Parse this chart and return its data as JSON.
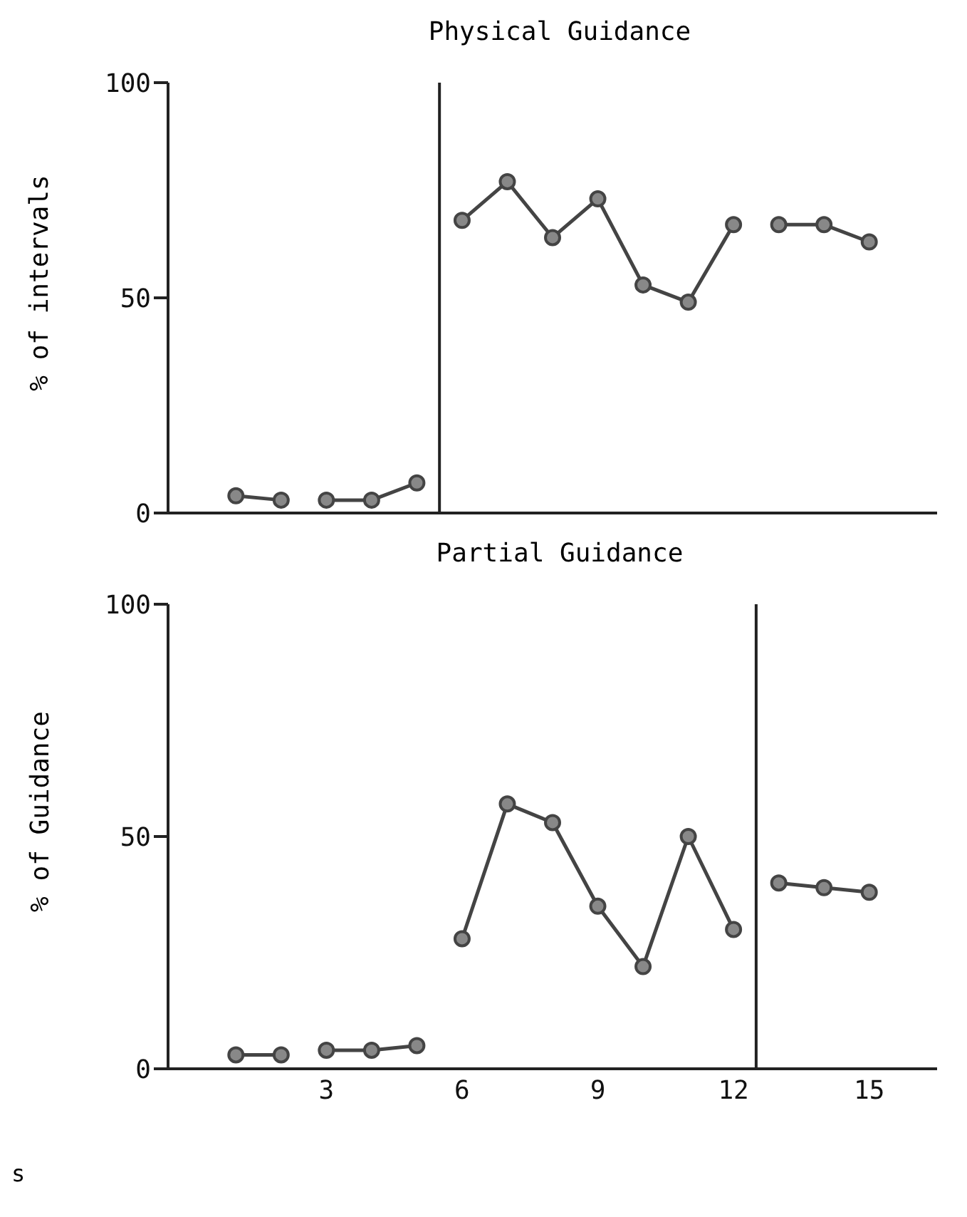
{
  "chart_data": [
    {
      "type": "line",
      "title": "Physical Guidance",
      "ylabel": "% of intervals",
      "xlim": [
        -0.5,
        16.5
      ],
      "xticks": [
        3,
        6,
        9,
        12,
        15
      ],
      "ylim": [
        0,
        100
      ],
      "yticks": [
        0,
        50,
        100
      ],
      "tick_labels": "y",
      "marker": "circle",
      "grid": false,
      "series": [
        {
          "color": "#444444",
          "x": [
            1,
            2
          ],
          "values": [
            4,
            3
          ]
        },
        {
          "color": "#444444",
          "x": [
            3,
            4,
            5
          ],
          "values": [
            3,
            3,
            7
          ]
        },
        {
          "color": "#444444",
          "x": [
            6,
            7,
            8,
            9,
            10,
            11,
            12
          ],
          "values": [
            68,
            77,
            64,
            73,
            53,
            49,
            67
          ]
        },
        {
          "color": "#444444",
          "x": [
            13,
            14,
            15
          ],
          "values": [
            67,
            67,
            63
          ]
        }
      ],
      "ref_lines": [
        {
          "axis": "x",
          "value": 5.5,
          "color": "#222222"
        }
      ]
    },
    {
      "type": "line",
      "title": "Partial Guidance",
      "ylabel": "% of Guidance",
      "xlim": [
        -0.5,
        16.5
      ],
      "xticks": [
        3,
        6,
        9,
        12,
        15
      ],
      "ylim": [
        0,
        100
      ],
      "yticks": [
        0,
        50,
        100
      ],
      "marker": "circle",
      "grid": false,
      "series": [
        {
          "color": "#444444",
          "x": [
            1,
            2
          ],
          "values": [
            3,
            3
          ]
        },
        {
          "color": "#444444",
          "x": [
            3,
            4,
            5
          ],
          "values": [
            4,
            4,
            5
          ]
        },
        {
          "color": "#444444",
          "x": [
            6,
            7,
            8,
            9,
            10,
            11,
            12
          ],
          "values": [
            28,
            57,
            53,
            35,
            22,
            50,
            30
          ]
        },
        {
          "color": "#444444",
          "x": [
            13,
            14,
            15
          ],
          "values": [
            40,
            39,
            38
          ]
        }
      ],
      "ref_lines": [
        {
          "axis": "x",
          "value": 12.5,
          "color": "#222222"
        }
      ],
      "annotations": [
        "s"
      ]
    }
  ]
}
